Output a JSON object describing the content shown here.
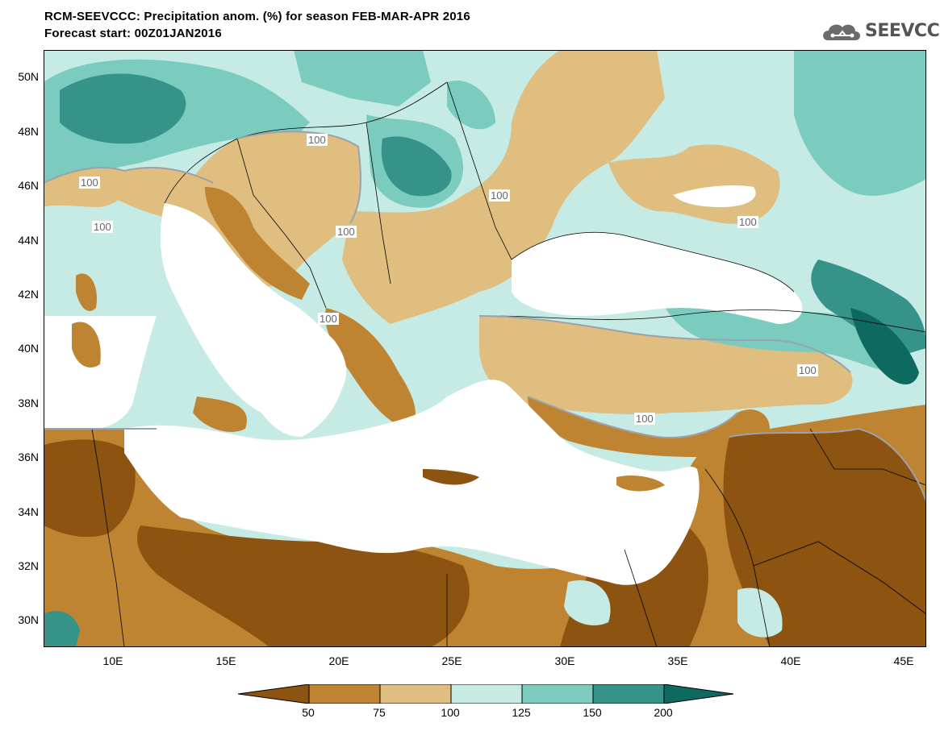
{
  "header": {
    "title_line1": "RCM-SEEVCCC: Precipitation anom. (%) for season FEB-MAR-APR 2016",
    "title_line2": "Forecast start: 00Z01JAN2016",
    "logo_text": "SEEVCCC"
  },
  "map": {
    "lat_labels": [
      "50N",
      "48N",
      "46N",
      "44N",
      "42N",
      "40N",
      "38N",
      "36N",
      "34N",
      "32N",
      "30N"
    ],
    "lon_labels": [
      "10E",
      "15E",
      "20E",
      "25E",
      "30E",
      "35E",
      "40E",
      "45E"
    ],
    "contour_labels": [
      "100",
      "100",
      "100",
      "100",
      "100",
      "100",
      "100",
      "100",
      "100"
    ]
  },
  "colorbar": {
    "levels": [
      "50",
      "75",
      "100",
      "125",
      "150",
      "200"
    ],
    "colors": [
      "#8c5410",
      "#be8432",
      "#dfbe80",
      "#c6ebe5",
      "#7bcbbf",
      "#35938a",
      "#0e6a60"
    ]
  }
}
